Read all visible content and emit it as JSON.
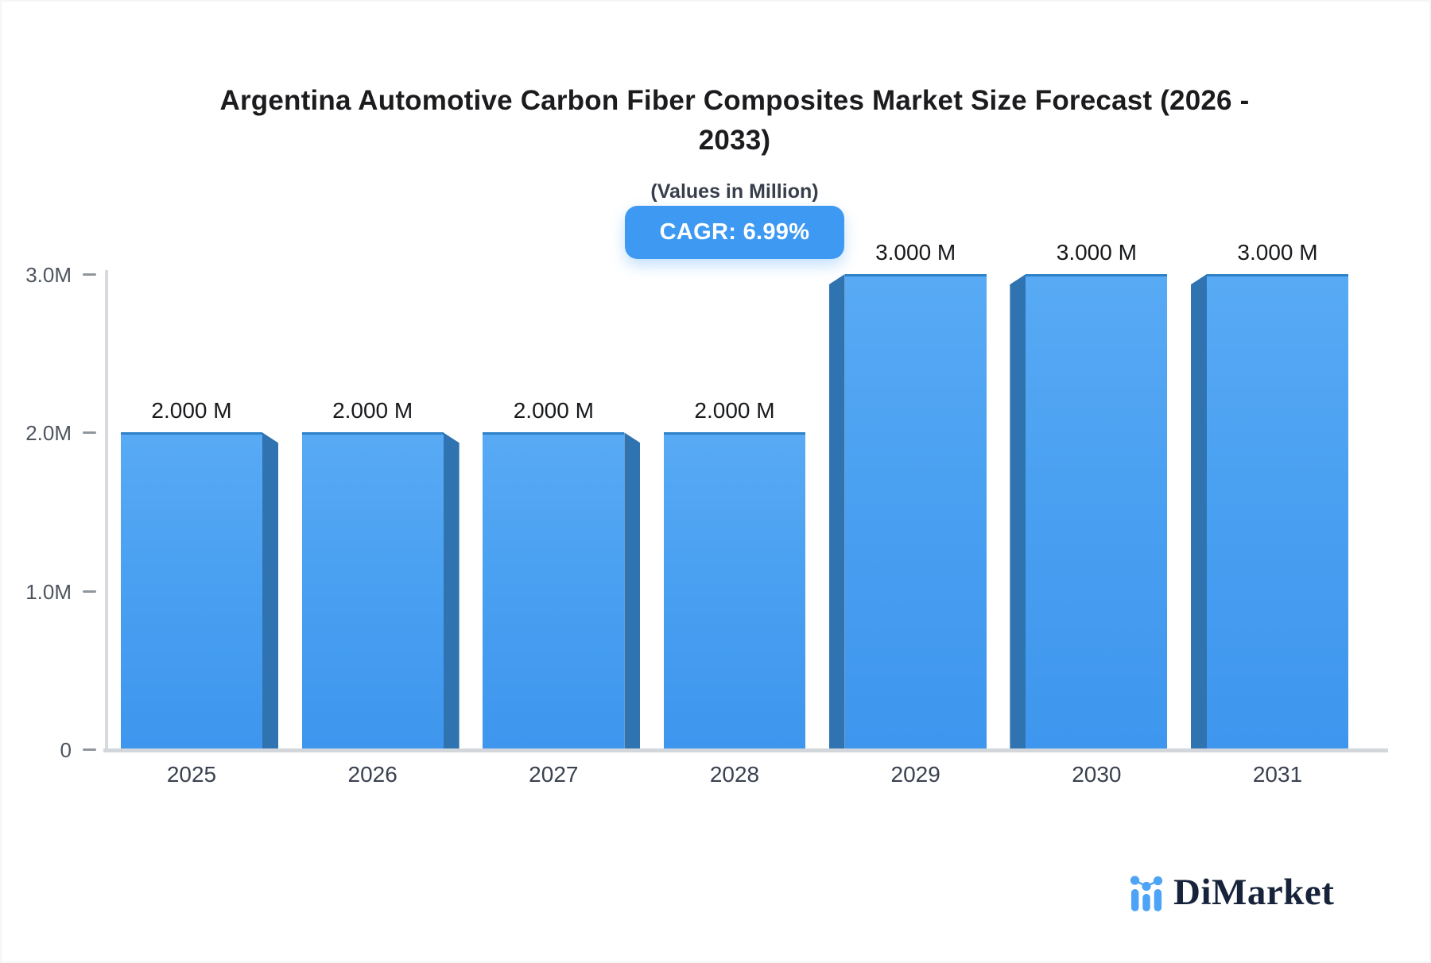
{
  "header": {
    "title_line1": "Argentina Automotive Carbon Fiber Composites Market Size Forecast (2026 -",
    "title_line2": "2033)",
    "subtitle": "(Values in Million)",
    "cagr_badge": "CAGR: 6.99%"
  },
  "chart_data": {
    "type": "bar",
    "title": "Argentina Automotive Carbon Fiber Composites Market Size Forecast (2026 - 2033)",
    "subtitle": "(Values in Million)",
    "annotation": "CAGR: 6.99%",
    "categories": [
      "2025",
      "2026",
      "2027",
      "2028",
      "2029",
      "2030",
      "2031"
    ],
    "values": [
      2.0,
      2.0,
      2.0,
      2.0,
      3.0,
      3.0,
      3.0
    ],
    "value_labels": [
      "2.000 M",
      "2.000 M",
      "2.000 M",
      "2.000 M",
      "3.000 M",
      "3.000 M",
      "3.000 M"
    ],
    "unit": "Million",
    "y_ticks": [
      {
        "label": "3.0M",
        "value": 3.0
      },
      {
        "label": "2.0M",
        "value": 2.0
      },
      {
        "label": "1.0M",
        "value": 1.0
      },
      {
        "label": "0",
        "value": 0.0
      }
    ],
    "ylim": [
      0,
      3.0
    ],
    "grid": false,
    "legend_position": "none",
    "colors": {
      "bar_face_top": "#58aaf4",
      "bar_face_bottom": "#3e96ee",
      "bar_side": "#2f73b1",
      "bar_top_edge": "#2e80c8",
      "axis": "#d6dade",
      "badge_background": "#3d99f2",
      "badge_text": "#ffffff"
    }
  },
  "footer": {
    "brand": "DiMarket",
    "brand_text_color": "#16233a",
    "brand_icon": "bar-line-chart-icon",
    "brand_icon_color": "#4da3f5"
  }
}
